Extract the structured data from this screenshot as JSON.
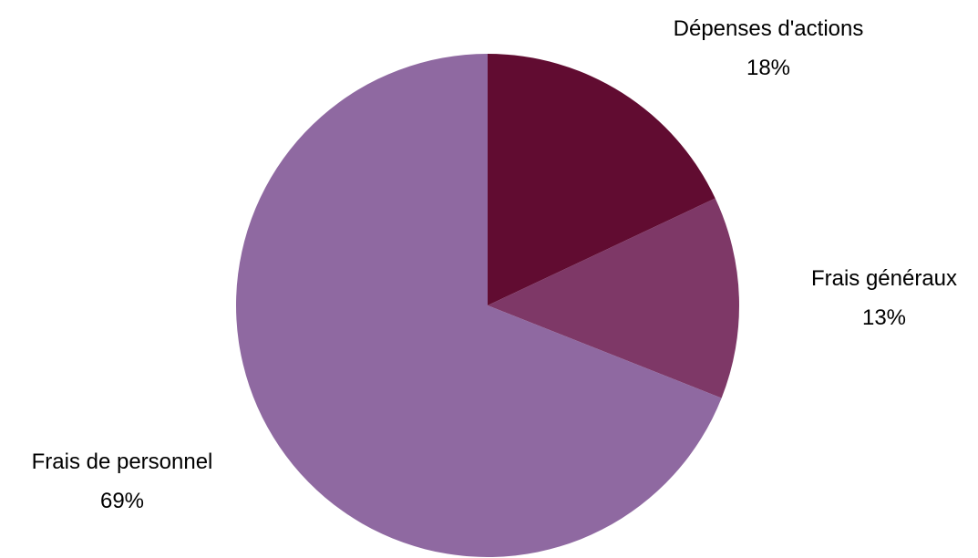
{
  "chart_data": {
    "type": "pie",
    "slices": [
      {
        "label": "Dépenses d'actions",
        "value": 18,
        "percent_label": "18%",
        "color": "#610c31"
      },
      {
        "label": "Frais généraux",
        "value": 13,
        "percent_label": "13%",
        "color": "#7e3867"
      },
      {
        "label": "Frais de personnel",
        "value": 69,
        "percent_label": "69%",
        "color": "#8f69a1"
      }
    ],
    "start_angle": "12 o'clock",
    "direction": "clockwise",
    "legend": "none",
    "labels": "outside"
  }
}
